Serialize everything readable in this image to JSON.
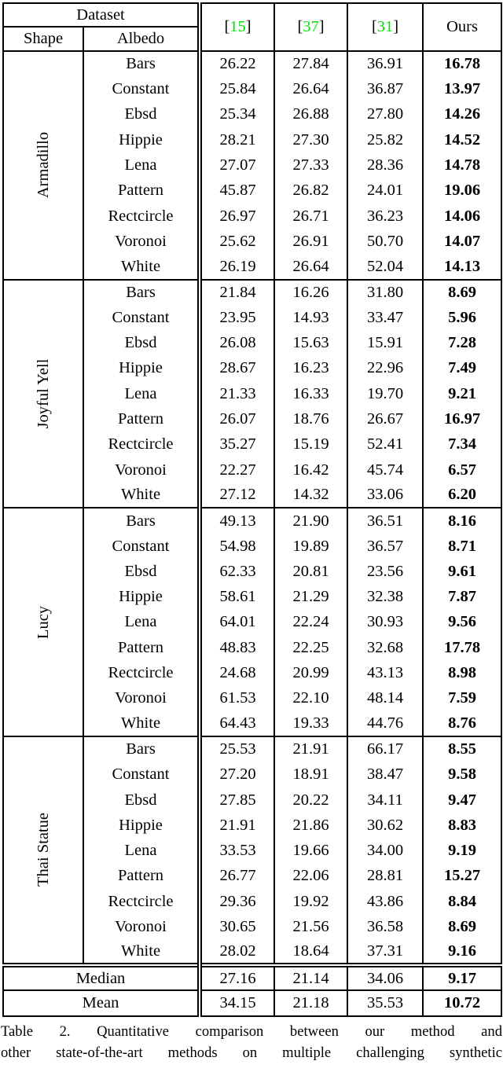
{
  "table": {
    "citation_color": "#00e300",
    "header": {
      "dataset_label": "Dataset",
      "shape_label": "Shape",
      "albedo_label": "Albedo",
      "bracket_open": "[",
      "bracket_close": "]",
      "methods": [
        {
          "ref": "15"
        },
        {
          "ref": "37"
        },
        {
          "ref": "31"
        }
      ],
      "ours_label": "Ours"
    },
    "sections": [
      {
        "shape": "Armadillo",
        "rows": [
          {
            "albedo": "Bars",
            "values": [
              "26.22",
              "27.84",
              "36.91"
            ],
            "ours": "16.78"
          },
          {
            "albedo": "Constant",
            "values": [
              "25.84",
              "26.64",
              "36.87"
            ],
            "ours": "13.97"
          },
          {
            "albedo": "Ebsd",
            "values": [
              "25.34",
              "26.88",
              "27.80"
            ],
            "ours": "14.26"
          },
          {
            "albedo": "Hippie",
            "values": [
              "28.21",
              "27.30",
              "25.82"
            ],
            "ours": "14.52"
          },
          {
            "albedo": "Lena",
            "values": [
              "27.07",
              "27.33",
              "28.36"
            ],
            "ours": "14.78"
          },
          {
            "albedo": "Pattern",
            "values": [
              "45.87",
              "26.82",
              "24.01"
            ],
            "ours": "19.06"
          },
          {
            "albedo": "Rectcircle",
            "values": [
              "26.97",
              "26.71",
              "36.23"
            ],
            "ours": "14.06"
          },
          {
            "albedo": "Voronoi",
            "values": [
              "25.62",
              "26.91",
              "50.70"
            ],
            "ours": "14.07"
          },
          {
            "albedo": "White",
            "values": [
              "26.19",
              "26.64",
              "52.04"
            ],
            "ours": "14.13"
          }
        ]
      },
      {
        "shape": "Joyful Yell",
        "rows": [
          {
            "albedo": "Bars",
            "values": [
              "21.84",
              "16.26",
              "31.80"
            ],
            "ours": "8.69"
          },
          {
            "albedo": "Constant",
            "values": [
              "23.95",
              "14.93",
              "33.47"
            ],
            "ours": "5.96"
          },
          {
            "albedo": "Ebsd",
            "values": [
              "26.08",
              "15.63",
              "15.91"
            ],
            "ours": "7.28"
          },
          {
            "albedo": "Hippie",
            "values": [
              "28.67",
              "16.23",
              "22.96"
            ],
            "ours": "7.49"
          },
          {
            "albedo": "Lena",
            "values": [
              "21.33",
              "16.33",
              "19.70"
            ],
            "ours": "9.21"
          },
          {
            "albedo": "Pattern",
            "values": [
              "26.07",
              "18.76",
              "26.67"
            ],
            "ours": "16.97"
          },
          {
            "albedo": "Rectcircle",
            "values": [
              "35.27",
              "15.19",
              "52.41"
            ],
            "ours": "7.34"
          },
          {
            "albedo": "Voronoi",
            "values": [
              "22.27",
              "16.42",
              "45.74"
            ],
            "ours": "6.57"
          },
          {
            "albedo": "White",
            "values": [
              "27.12",
              "14.32",
              "33.06"
            ],
            "ours": "6.20"
          }
        ]
      },
      {
        "shape": "Lucy",
        "rows": [
          {
            "albedo": "Bars",
            "values": [
              "49.13",
              "21.90",
              "36.51"
            ],
            "ours": "8.16"
          },
          {
            "albedo": "Constant",
            "values": [
              "54.98",
              "19.89",
              "36.57"
            ],
            "ours": "8.71"
          },
          {
            "albedo": "Ebsd",
            "values": [
              "62.33",
              "20.81",
              "23.56"
            ],
            "ours": "9.61"
          },
          {
            "albedo": "Hippie",
            "values": [
              "58.61",
              "21.29",
              "32.38"
            ],
            "ours": "7.87"
          },
          {
            "albedo": "Lena",
            "values": [
              "64.01",
              "22.24",
              "30.93"
            ],
            "ours": "9.56"
          },
          {
            "albedo": "Pattern",
            "values": [
              "48.83",
              "22.25",
              "32.68"
            ],
            "ours": "17.78"
          },
          {
            "albedo": "Rectcircle",
            "values": [
              "24.68",
              "20.99",
              "43.13"
            ],
            "ours": "8.98"
          },
          {
            "albedo": "Voronoi",
            "values": [
              "61.53",
              "22.10",
              "48.14"
            ],
            "ours": "7.59"
          },
          {
            "albedo": "White",
            "values": [
              "64.43",
              "19.33",
              "44.76"
            ],
            "ours": "8.76"
          }
        ]
      },
      {
        "shape": "Thai Statue",
        "rows": [
          {
            "albedo": "Bars",
            "values": [
              "25.53",
              "21.91",
              "66.17"
            ],
            "ours": "8.55"
          },
          {
            "albedo": "Constant",
            "values": [
              "27.20",
              "18.91",
              "38.47"
            ],
            "ours": "9.58"
          },
          {
            "albedo": "Ebsd",
            "values": [
              "27.85",
              "20.22",
              "34.11"
            ],
            "ours": "9.47"
          },
          {
            "albedo": "Hippie",
            "values": [
              "21.91",
              "21.86",
              "30.62"
            ],
            "ours": "8.83"
          },
          {
            "albedo": "Lena",
            "values": [
              "33.53",
              "19.66",
              "34.00"
            ],
            "ours": "9.19"
          },
          {
            "albedo": "Pattern",
            "values": [
              "26.77",
              "22.06",
              "28.81"
            ],
            "ours": "15.27"
          },
          {
            "albedo": "Rectcircle",
            "values": [
              "29.36",
              "19.92",
              "43.86"
            ],
            "ours": "8.84"
          },
          {
            "albedo": "Voronoi",
            "values": [
              "30.65",
              "21.56",
              "36.58"
            ],
            "ours": "8.69"
          },
          {
            "albedo": "White",
            "values": [
              "28.02",
              "18.64",
              "37.31"
            ],
            "ours": "9.16"
          }
        ]
      }
    ],
    "summary": [
      {
        "label": "Median",
        "values": [
          "27.16",
          "21.14",
          "34.06"
        ],
        "ours": "9.17"
      },
      {
        "label": "Mean",
        "values": [
          "34.15",
          "21.18",
          "35.53"
        ],
        "ours": "10.72"
      }
    ]
  },
  "caption": {
    "line1": "Table 2. Quantitative comparison between our method and",
    "line2": "other state-of-the-art methods on multiple challenging synthetic"
  }
}
